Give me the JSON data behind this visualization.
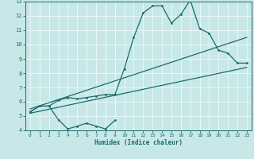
{
  "xlabel": "Humidex (Indice chaleur)",
  "bg_color": "#c8e8e8",
  "line_color": "#1a6b6b",
  "grid_color": "#e8f8f8",
  "xlim": [
    -0.5,
    23.5
  ],
  "ylim": [
    4,
    13
  ],
  "xticks": [
    0,
    1,
    2,
    3,
    4,
    5,
    6,
    7,
    8,
    9,
    10,
    11,
    12,
    13,
    14,
    15,
    16,
    17,
    18,
    19,
    20,
    21,
    22,
    23
  ],
  "yticks": [
    4,
    5,
    6,
    7,
    8,
    9,
    10,
    11,
    12,
    13
  ],
  "line1_x": [
    0,
    1,
    2,
    3,
    4,
    5,
    6,
    7,
    8,
    9
  ],
  "line1_y": [
    5.3,
    5.7,
    5.7,
    4.75,
    4.1,
    4.3,
    4.5,
    4.3,
    4.1,
    4.7
  ],
  "line2_x": [
    0,
    1,
    2,
    3,
    4,
    5,
    6,
    7,
    8,
    9,
    10,
    11,
    12,
    13,
    14,
    15,
    16,
    17,
    18,
    19,
    20,
    21,
    22,
    23
  ],
  "line2_y": [
    5.3,
    5.7,
    5.7,
    6.1,
    6.3,
    6.2,
    6.3,
    6.4,
    6.5,
    6.5,
    8.3,
    10.5,
    12.2,
    12.7,
    12.7,
    11.5,
    12.1,
    13.1,
    11.1,
    10.8,
    9.6,
    9.4,
    8.7,
    8.7
  ],
  "line3_x": [
    0,
    23
  ],
  "line3_y": [
    5.2,
    8.4
  ],
  "line4_x": [
    0,
    23
  ],
  "line4_y": [
    5.5,
    10.5
  ]
}
